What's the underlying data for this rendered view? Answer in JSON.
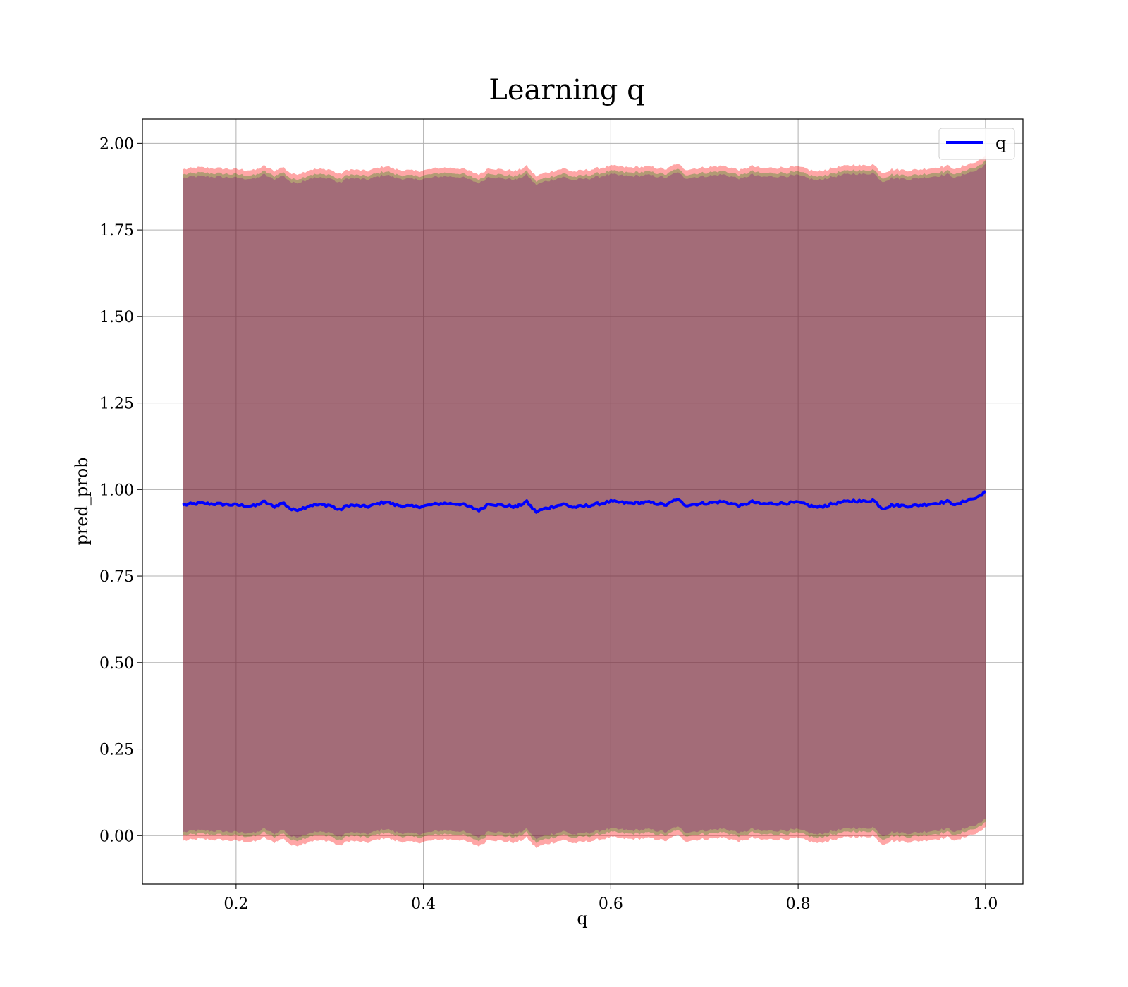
{
  "chart_data": {
    "type": "line",
    "title": "Learning q",
    "xlabel": "q",
    "ylabel": "pred_prob",
    "xlim": [
      0.1,
      1.04
    ],
    "ylim": [
      -0.14,
      2.07
    ],
    "xticks": [
      0.2,
      0.4,
      0.6,
      0.8,
      1.0
    ],
    "xtick_labels": [
      "0.2",
      "0.4",
      "0.6",
      "0.8",
      "1.0"
    ],
    "yticks": [
      0.0,
      0.25,
      0.5,
      0.75,
      1.0,
      1.25,
      1.5,
      1.75,
      2.0
    ],
    "ytick_labels": [
      "0.00",
      "0.25",
      "0.50",
      "0.75",
      "1.00",
      "1.25",
      "1.50",
      "1.75",
      "2.00"
    ],
    "grid": true,
    "legend_position": "top-right",
    "x_range": [
      0.143,
      1.0
    ],
    "series": [
      {
        "name": "q",
        "role": "mean",
        "color": "#0000ff",
        "x": [
          0.143,
          0.16,
          0.18,
          0.2,
          0.22,
          0.23,
          0.24,
          0.25,
          0.26,
          0.27,
          0.28,
          0.3,
          0.31,
          0.32,
          0.34,
          0.36,
          0.37,
          0.39,
          0.4,
          0.42,
          0.44,
          0.46,
          0.47,
          0.48,
          0.5,
          0.51,
          0.52,
          0.53,
          0.55,
          0.56,
          0.58,
          0.6,
          0.62,
          0.64,
          0.66,
          0.67,
          0.68,
          0.7,
          0.72,
          0.74,
          0.75,
          0.76,
          0.78,
          0.8,
          0.82,
          0.84,
          0.86,
          0.87,
          0.88,
          0.89,
          0.9,
          0.92,
          0.94,
          0.96,
          0.97,
          0.98,
          0.99,
          1.0
        ],
        "y": [
          0.955,
          0.96,
          0.958,
          0.955,
          0.952,
          0.965,
          0.95,
          0.962,
          0.94,
          0.945,
          0.955,
          0.955,
          0.94,
          0.955,
          0.95,
          0.965,
          0.955,
          0.95,
          0.952,
          0.96,
          0.958,
          0.94,
          0.96,
          0.955,
          0.95,
          0.965,
          0.935,
          0.945,
          0.958,
          0.948,
          0.955,
          0.965,
          0.96,
          0.963,
          0.955,
          0.972,
          0.955,
          0.96,
          0.965,
          0.952,
          0.965,
          0.958,
          0.96,
          0.962,
          0.948,
          0.96,
          0.968,
          0.965,
          0.97,
          0.945,
          0.955,
          0.952,
          0.958,
          0.965,
          0.955,
          0.97,
          0.975,
          0.995
        ]
      },
      {
        "name": "",
        "role": "band",
        "color": "#ff0000",
        "half_width": 0.97
      },
      {
        "name": "",
        "role": "band",
        "color": "#008000",
        "half_width": 0.955
      },
      {
        "name": "",
        "role": "band",
        "color": "#800080",
        "half_width": 0.945
      }
    ]
  }
}
